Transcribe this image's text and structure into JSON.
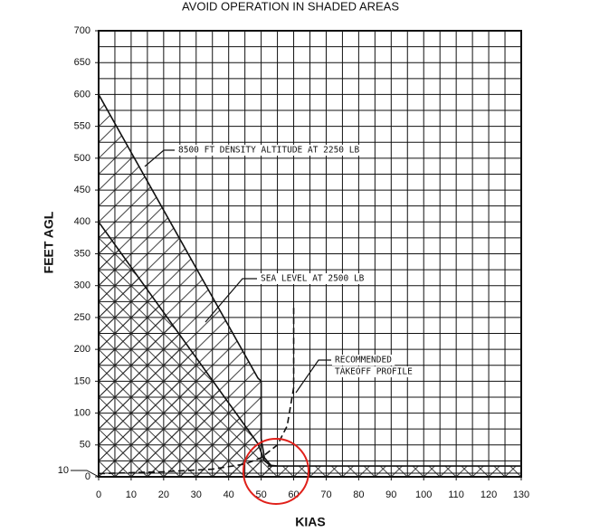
{
  "chart_data": {
    "type": "area",
    "title": "AVOID OPERATION IN SHADED AREAS",
    "x_label": "KIAS",
    "y_label": "FEET AGL",
    "xlim": [
      0,
      130
    ],
    "ylim": [
      0,
      700
    ],
    "xticks": [
      0,
      10,
      20,
      30,
      40,
      50,
      60,
      70,
      80,
      90,
      100,
      110,
      120,
      130
    ],
    "yticks": [
      0,
      50,
      100,
      150,
      200,
      250,
      300,
      350,
      400,
      450,
      500,
      550,
      600,
      650,
      700
    ],
    "yticks_extra": [
      10
    ],
    "grid": true,
    "minor_step": {
      "x": 5,
      "y": 25
    },
    "series": [
      {
        "x": [
          0,
          49,
          50,
          50,
          51,
          53,
          55
        ],
        "values": [
          600,
          155,
          150,
          60,
          30,
          18,
          17
        ],
        "fill": "hatch",
        "style": "solid"
      },
      {
        "x": [
          0,
          49,
          51,
          53
        ],
        "values": [
          400,
          52,
          25,
          17
        ],
        "fill": "cross",
        "style": "solid"
      },
      {
        "x": [
          52,
          130
        ],
        "values": [
          17,
          17
        ],
        "fill": "cross",
        "style": "solid"
      },
      {
        "x": [
          0,
          20,
          35,
          45,
          50,
          55,
          58,
          60,
          60
        ],
        "values": [
          5,
          8,
          12,
          20,
          30,
          50,
          80,
          140,
          270
        ],
        "fill": "none",
        "style": "dashed"
      }
    ],
    "annotations": [
      "8500 FT DENSITY ALTITUDE AT 2250 LB",
      "SEA LEVEL AT 2500 LB",
      "RECOMMENDED",
      "TAKEOFF PROFILE"
    ]
  }
}
